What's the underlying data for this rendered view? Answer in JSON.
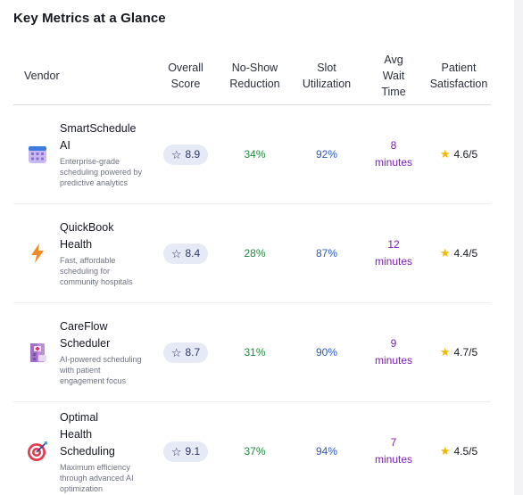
{
  "page": {
    "title": "Key Metrics at a Glance"
  },
  "table": {
    "headers": {
      "vendor": "Vendor",
      "overall_score": [
        "Overall",
        "Score"
      ],
      "no_show": [
        "No-Show",
        "Reduction"
      ],
      "slot": [
        "Slot",
        "Utilization"
      ],
      "wait": [
        "Avg",
        "Wait",
        "Time"
      ],
      "satisfaction": [
        "Patient",
        "Satisfaction"
      ]
    },
    "rows": [
      {
        "name_lines": [
          "SmartSchedule",
          "AI"
        ],
        "description": "Enterprise-grade scheduling powered by predictive analytics",
        "icon": "calendar-icon",
        "score": "8.9",
        "no_show": "34%",
        "slot": "92%",
        "wait_lines": [
          "8",
          "minutes"
        ],
        "satisfaction": "4.6/5"
      },
      {
        "name_lines": [
          "QuickBook",
          "Health"
        ],
        "description": "Fast, affordable scheduling for community hospitals",
        "icon": "lightning-icon",
        "score": "8.4",
        "no_show": "28%",
        "slot": "87%",
        "wait_lines": [
          "12",
          "minutes"
        ],
        "satisfaction": "4.4/5"
      },
      {
        "name_lines": [
          "CareFlow",
          "Scheduler"
        ],
        "description": "AI-powered scheduling with patient engagement focus",
        "icon": "hospital-icon",
        "score": "8.7",
        "no_show": "31%",
        "slot": "90%",
        "wait_lines": [
          "9",
          "minutes"
        ],
        "satisfaction": "4.7/5"
      },
      {
        "name_lines": [
          "Optimal",
          "Health",
          "Scheduling"
        ],
        "description": "Maximum efficiency through advanced AI optimization",
        "icon": "target-icon",
        "score": "9.1",
        "no_show": "37%",
        "slot": "94%",
        "wait_lines": [
          "7",
          "minutes"
        ],
        "satisfaction": "4.5/5"
      }
    ]
  },
  "colors": {
    "score_badge_bg": "#e6eaf6",
    "no_show": "#1e8a3c",
    "slot": "#2a59b8",
    "wait": "#7a1fb0",
    "star": "#f2b705"
  }
}
